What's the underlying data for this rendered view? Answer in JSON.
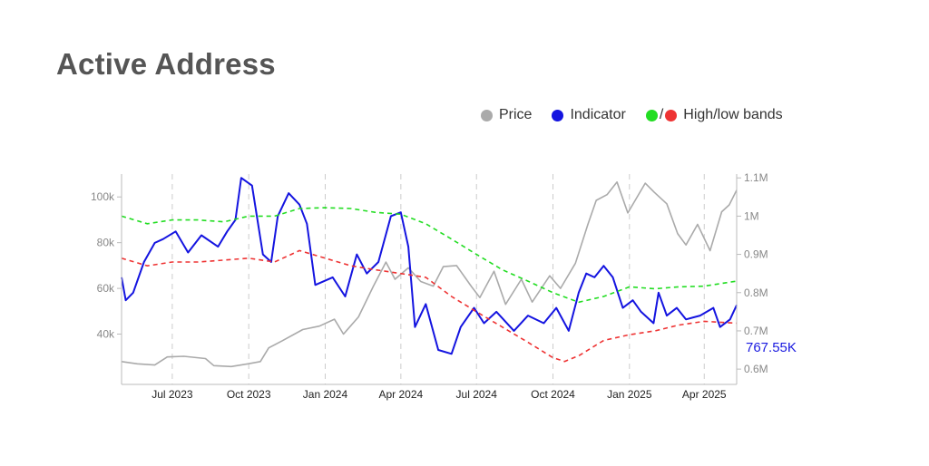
{
  "title": "Active Address",
  "legend": [
    {
      "label": "Price",
      "color": "#aaaaaa"
    },
    {
      "label": "Indicator",
      "color": "#1414e0"
    },
    {
      "label": "High/low bands",
      "colors": [
        "#22dd22",
        "#ee3333"
      ],
      "separator": "/"
    }
  ],
  "current_value_label": "767.55K",
  "chart_data": {
    "type": "line",
    "title": "Active Address",
    "x_range": [
      "2023-05-01",
      "2025-05-10"
    ],
    "x_ticks": [
      {
        "date": "2023-07-01",
        "label": "Jul 2023"
      },
      {
        "date": "2023-10-01",
        "label": "Oct 2023"
      },
      {
        "date": "2024-01-01",
        "label": "Jan 2024"
      },
      {
        "date": "2024-04-01",
        "label": "Apr 2024"
      },
      {
        "date": "2024-07-01",
        "label": "Jul 2024"
      },
      {
        "date": "2024-10-01",
        "label": "Oct 2024"
      },
      {
        "date": "2025-01-01",
        "label": "Jan 2025"
      },
      {
        "date": "2025-04-01",
        "label": "Apr 2025"
      }
    ],
    "y_left": {
      "range": [
        18000,
        110000
      ],
      "ticks": [
        {
          "value": 40000,
          "label": "40k"
        },
        {
          "value": 60000,
          "label": "60k"
        },
        {
          "value": 80000,
          "label": "80k"
        },
        {
          "value": 100000,
          "label": "100k"
        }
      ]
    },
    "y_right": {
      "range": [
        560000,
        1110000
      ],
      "ticks": [
        {
          "value": 600000,
          "label": "0.6M"
        },
        {
          "value": 700000,
          "label": "0.7M"
        },
        {
          "value": 800000,
          "label": "0.8M"
        },
        {
          "value": 900000,
          "label": "0.9M"
        },
        {
          "value": 1000000,
          "label": "1M"
        },
        {
          "value": 1100000,
          "label": "1.1M"
        }
      ]
    },
    "grid": "vertical dashed",
    "legend_position": "top-right",
    "series": [
      {
        "name": "Price",
        "axis": "left",
        "color": "#aaaaaa",
        "dash": false,
        "points": [
          [
            "2023-05-01",
            28000
          ],
          [
            "2023-05-20",
            27000
          ],
          [
            "2023-06-10",
            26500
          ],
          [
            "2023-06-25",
            30000
          ],
          [
            "2023-07-15",
            30300
          ],
          [
            "2023-08-10",
            29300
          ],
          [
            "2023-08-20",
            26200
          ],
          [
            "2023-09-10",
            25800
          ],
          [
            "2023-09-30",
            27000
          ],
          [
            "2023-10-15",
            28000
          ],
          [
            "2023-10-25",
            34000
          ],
          [
            "2023-11-10",
            37000
          ],
          [
            "2023-12-05",
            42000
          ],
          [
            "2023-12-25",
            43500
          ],
          [
            "2024-01-12",
            46500
          ],
          [
            "2024-01-23",
            40000
          ],
          [
            "2024-02-10",
            47500
          ],
          [
            "2024-02-28",
            61000
          ],
          [
            "2024-03-14",
            71500
          ],
          [
            "2024-03-25",
            64000
          ],
          [
            "2024-04-10",
            69000
          ],
          [
            "2024-04-25",
            63000
          ],
          [
            "2024-05-10",
            61000
          ],
          [
            "2024-05-22",
            69500
          ],
          [
            "2024-06-07",
            70000
          ],
          [
            "2024-06-25",
            60800
          ],
          [
            "2024-07-05",
            56000
          ],
          [
            "2024-07-22",
            67500
          ],
          [
            "2024-08-05",
            53000
          ],
          [
            "2024-08-24",
            64000
          ],
          [
            "2024-09-06",
            54000
          ],
          [
            "2024-09-27",
            65500
          ],
          [
            "2024-10-10",
            60000
          ],
          [
            "2024-10-28",
            71000
          ],
          [
            "2024-11-12",
            88000
          ],
          [
            "2024-11-22",
            98500
          ],
          [
            "2024-12-05",
            101000
          ],
          [
            "2024-12-17",
            106500
          ],
          [
            "2024-12-30",
            93000
          ],
          [
            "2025-01-20",
            106000
          ],
          [
            "2025-01-31",
            102000
          ],
          [
            "2025-02-15",
            97000
          ],
          [
            "2025-02-28",
            84000
          ],
          [
            "2025-03-10",
            79000
          ],
          [
            "2025-03-24",
            88000
          ],
          [
            "2025-04-08",
            76500
          ],
          [
            "2025-04-22",
            93500
          ],
          [
            "2025-05-01",
            96500
          ],
          [
            "2025-05-10",
            103000
          ]
        ]
      },
      {
        "name": "Indicator",
        "axis": "right",
        "color": "#1414e0",
        "dash": false,
        "points": [
          [
            "2023-05-01",
            840000
          ],
          [
            "2023-05-06",
            780000
          ],
          [
            "2023-05-15",
            800000
          ],
          [
            "2023-05-28",
            880000
          ],
          [
            "2023-06-10",
            930000
          ],
          [
            "2023-06-20",
            940000
          ],
          [
            "2023-07-05",
            960000
          ],
          [
            "2023-07-20",
            905000
          ],
          [
            "2023-08-05",
            950000
          ],
          [
            "2023-08-25",
            920000
          ],
          [
            "2023-09-05",
            960000
          ],
          [
            "2023-09-15",
            990000
          ],
          [
            "2023-09-22",
            1100000
          ],
          [
            "2023-10-05",
            1080000
          ],
          [
            "2023-10-18",
            900000
          ],
          [
            "2023-10-28",
            880000
          ],
          [
            "2023-11-05",
            1000000
          ],
          [
            "2023-11-18",
            1060000
          ],
          [
            "2023-12-01",
            1030000
          ],
          [
            "2023-12-10",
            980000
          ],
          [
            "2023-12-20",
            820000
          ],
          [
            "2024-01-10",
            840000
          ],
          [
            "2024-01-25",
            790000
          ],
          [
            "2024-02-08",
            900000
          ],
          [
            "2024-02-20",
            850000
          ],
          [
            "2024-03-05",
            880000
          ],
          [
            "2024-03-20",
            1000000
          ],
          [
            "2024-04-01",
            1010000
          ],
          [
            "2024-04-10",
            920000
          ],
          [
            "2024-04-18",
            710000
          ],
          [
            "2024-05-01",
            770000
          ],
          [
            "2024-05-16",
            650000
          ],
          [
            "2024-06-01",
            640000
          ],
          [
            "2024-06-12",
            710000
          ],
          [
            "2024-06-28",
            760000
          ],
          [
            "2024-07-10",
            720000
          ],
          [
            "2024-07-25",
            750000
          ],
          [
            "2024-08-15",
            700000
          ],
          [
            "2024-09-01",
            740000
          ],
          [
            "2024-09-20",
            720000
          ],
          [
            "2024-10-05",
            760000
          ],
          [
            "2024-10-20",
            700000
          ],
          [
            "2024-11-01",
            800000
          ],
          [
            "2024-11-10",
            850000
          ],
          [
            "2024-11-20",
            840000
          ],
          [
            "2024-12-01",
            870000
          ],
          [
            "2024-12-12",
            840000
          ],
          [
            "2024-12-24",
            760000
          ],
          [
            "2025-01-05",
            780000
          ],
          [
            "2025-01-15",
            750000
          ],
          [
            "2025-01-30",
            720000
          ],
          [
            "2025-02-05",
            800000
          ],
          [
            "2025-02-15",
            740000
          ],
          [
            "2025-02-27",
            760000
          ],
          [
            "2025-03-10",
            730000
          ],
          [
            "2025-03-27",
            740000
          ],
          [
            "2025-04-12",
            760000
          ],
          [
            "2025-04-20",
            710000
          ],
          [
            "2025-05-02",
            730000
          ],
          [
            "2025-05-10",
            767550
          ]
        ]
      },
      {
        "name": "High band",
        "axis": "right",
        "color": "#22dd22",
        "dash": true,
        "points": [
          [
            "2023-05-01",
            1000000
          ],
          [
            "2023-06-01",
            980000
          ],
          [
            "2023-07-01",
            990000
          ],
          [
            "2023-08-01",
            990000
          ],
          [
            "2023-09-01",
            985000
          ],
          [
            "2023-10-01",
            1000000
          ],
          [
            "2023-11-01",
            1000000
          ],
          [
            "2023-12-01",
            1020000
          ],
          [
            "2024-01-01",
            1022000
          ],
          [
            "2024-02-01",
            1020000
          ],
          [
            "2024-03-01",
            1010000
          ],
          [
            "2024-04-01",
            1005000
          ],
          [
            "2024-05-01",
            980000
          ],
          [
            "2024-06-01",
            940000
          ],
          [
            "2024-07-01",
            900000
          ],
          [
            "2024-08-01",
            860000
          ],
          [
            "2024-09-01",
            830000
          ],
          [
            "2024-10-01",
            800000
          ],
          [
            "2024-11-01",
            775000
          ],
          [
            "2024-12-01",
            790000
          ],
          [
            "2025-01-01",
            815000
          ],
          [
            "2025-02-01",
            810000
          ],
          [
            "2025-03-01",
            815000
          ],
          [
            "2025-04-01",
            817000
          ],
          [
            "2025-05-10",
            830000
          ]
        ]
      },
      {
        "name": "Low band",
        "axis": "right",
        "color": "#ee3333",
        "dash": true,
        "points": [
          [
            "2023-05-01",
            890000
          ],
          [
            "2023-06-01",
            870000
          ],
          [
            "2023-07-01",
            880000
          ],
          [
            "2023-08-01",
            880000
          ],
          [
            "2023-09-01",
            885000
          ],
          [
            "2023-10-01",
            890000
          ],
          [
            "2023-11-01",
            880000
          ],
          [
            "2023-12-01",
            910000
          ],
          [
            "2024-01-01",
            890000
          ],
          [
            "2024-02-01",
            870000
          ],
          [
            "2024-03-01",
            860000
          ],
          [
            "2024-04-01",
            850000
          ],
          [
            "2024-05-01",
            840000
          ],
          [
            "2024-06-01",
            790000
          ],
          [
            "2024-07-01",
            750000
          ],
          [
            "2024-08-01",
            710000
          ],
          [
            "2024-09-01",
            670000
          ],
          [
            "2024-10-01",
            630000
          ],
          [
            "2024-10-15",
            620000
          ],
          [
            "2024-11-01",
            635000
          ],
          [
            "2024-12-01",
            675000
          ],
          [
            "2025-01-01",
            690000
          ],
          [
            "2025-02-01",
            700000
          ],
          [
            "2025-03-01",
            715000
          ],
          [
            "2025-04-01",
            725000
          ],
          [
            "2025-05-10",
            720000
          ]
        ]
      }
    ]
  }
}
